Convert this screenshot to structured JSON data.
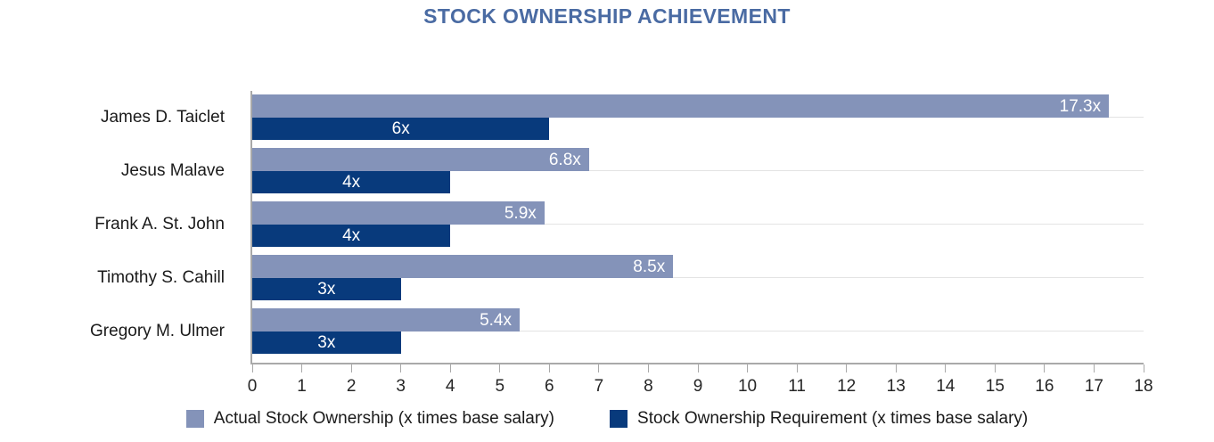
{
  "chart_data": {
    "type": "bar",
    "orientation": "horizontal",
    "title": "STOCK OWNERSHIP ACHIEVEMENT",
    "categories": [
      "James D. Taiclet",
      "Jesus Malave",
      "Frank A. St. John",
      "Timothy S. Cahill",
      "Gregory M. Ulmer"
    ],
    "series": [
      {
        "name": "Actual Stock Ownership (x times base salary)",
        "color": "#8493b9",
        "values": [
          17.3,
          6.8,
          5.9,
          8.5,
          5.4
        ],
        "labels": [
          "17.3x",
          "6.8x",
          "5.9x",
          "8.5x",
          "5.4x"
        ],
        "label_position": "inside-end"
      },
      {
        "name": "Stock Ownership Requirement (x times base salary)",
        "color": "#083a7c",
        "values": [
          6,
          4,
          4,
          3,
          3
        ],
        "labels": [
          "6x",
          "4x",
          "4x",
          "3x",
          "3x"
        ],
        "label_position": "center"
      }
    ],
    "xlim": [
      0,
      18
    ],
    "xticks": [
      0,
      1,
      2,
      3,
      4,
      5,
      6,
      7,
      8,
      9,
      10,
      11,
      12,
      13,
      14,
      15,
      16,
      17,
      18
    ],
    "grid": "horizontal-category-center",
    "legend_position": "bottom"
  },
  "colors": {
    "title": "#4a6ba3",
    "axis": "#a9a9a9",
    "gridline": "#e3e3e3",
    "bar_label": "#ffffff",
    "text": "#1a1a1a"
  }
}
